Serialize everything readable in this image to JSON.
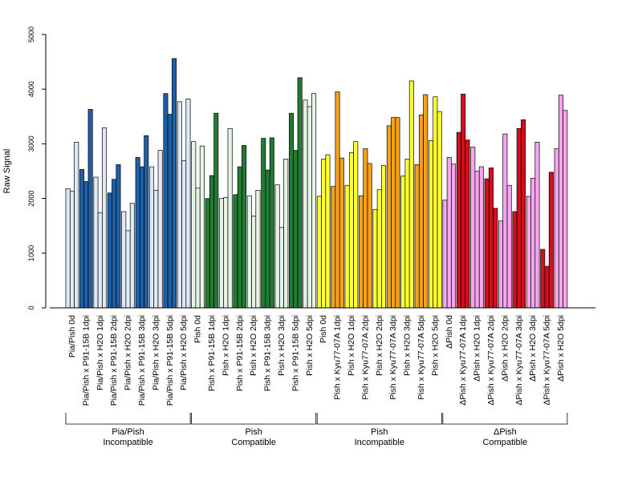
{
  "chart_data": {
    "type": "bar",
    "ylabel": "Raw Signal",
    "ylim": [
      0,
      5000
    ],
    "yticks": [
      0,
      1000,
      2000,
      3000,
      4000,
      5000
    ],
    "grid": false,
    "legend": "none",
    "groups": [
      {
        "label_line1": "Pia/Pish",
        "label_line2": "Incompatible",
        "categories": [
          {
            "label": "Pia/Pish 0d",
            "color": "#ddeaf6",
            "values": [
              2180,
              2130,
              3030
            ]
          },
          {
            "label": "Pia/Pish x P91-15B 1dpi",
            "color": "#1f5fa6",
            "values": [
              2530,
              2310,
              3630
            ]
          },
          {
            "label": "Pia/Pish x H2O 1dpi",
            "color": "#ddeaf6",
            "values": [
              2390,
              1740,
              3290
            ]
          },
          {
            "label": "Pia/Pish x P91-15B 2dpi",
            "color": "#1f5fa6",
            "values": [
              2100,
              2350,
              2620
            ]
          },
          {
            "label": "Pia/Pish x H2O 2dpi",
            "color": "#ddeaf6",
            "values": [
              1760,
              1410,
              1910
            ]
          },
          {
            "label": "Pia/Pish x P91-15B 3dpi",
            "color": "#1f5fa6",
            "values": [
              2750,
              2580,
              3150
            ]
          },
          {
            "label": "Pia/Pish x H2O 3dpi",
            "color": "#ddeaf6",
            "values": [
              2580,
              2150,
              2880
            ]
          },
          {
            "label": "Pia/Pish x P91-15B 5dpi",
            "color": "#1f5fa6",
            "values": [
              3920,
              3540,
              4560
            ]
          },
          {
            "label": "Pia/Pish x H2O 5dpi",
            "color": "#ddeaf6",
            "values": [
              3770,
              2690,
              3820
            ]
          }
        ]
      },
      {
        "label_line1": "Pish",
        "label_line2": "Compatible",
        "categories": [
          {
            "label": "Pish 0d",
            "color": "#e6f4e6",
            "values": [
              3040,
              2190,
              2960
            ]
          },
          {
            "label": "Pish x P91-15B 1dpi",
            "color": "#237a33",
            "values": [
              2000,
              2420,
              3560
            ]
          },
          {
            "label": "Pish x H2O 1dpi",
            "color": "#e6f4e6",
            "values": [
              2000,
              2020,
              3280
            ]
          },
          {
            "label": "Pish x P91-15B 2dpi",
            "color": "#237a33",
            "values": [
              2070,
              2580,
              2970
            ]
          },
          {
            "label": "Pish x H2O 2dpi",
            "color": "#e6f4e6",
            "values": [
              2050,
              1680,
              2150
            ]
          },
          {
            "label": "Pish x P91-15B 3dpi",
            "color": "#237a33",
            "values": [
              3100,
              2520,
              3110
            ]
          },
          {
            "label": "Pish x H2O 3dpi",
            "color": "#e6f4e6",
            "values": [
              2250,
              1470,
              2720
            ]
          },
          {
            "label": "Pish x P91-15B 5dpi",
            "color": "#237a33",
            "values": [
              3560,
              2880,
              4210
            ]
          },
          {
            "label": "Pish x H2O 5dpi",
            "color": "#e6f4e6",
            "values": [
              3800,
              3680,
              3920
            ]
          }
        ]
      },
      {
        "label_line1": "Pish",
        "label_line2": "Incompatible",
        "categories": [
          {
            "label": "Pish 0d",
            "color": "#ffff33",
            "values": [
              2040,
              2720,
              2800
            ]
          },
          {
            "label": "Pish x Kyu77-07A 1dpi",
            "color": "#f4a21a",
            "values": [
              2220,
              3950,
              2740
            ]
          },
          {
            "label": "Pish x H2O 1dpi",
            "color": "#ffff33",
            "values": [
              2240,
              2840,
              3040
            ]
          },
          {
            "label": "Pish x Kyu77-07A 2dpi",
            "color": "#f4a21a",
            "values": [
              2050,
              2910,
              2640
            ]
          },
          {
            "label": "Pish x H2O 2dpi",
            "color": "#ffff33",
            "values": [
              1800,
              2160,
              2600
            ]
          },
          {
            "label": "Pish x Kyu77-07A 3dpi",
            "color": "#f4a21a",
            "values": [
              3330,
              3480,
              3480
            ]
          },
          {
            "label": "Pish x H2O 3dpi",
            "color": "#ffff33",
            "values": [
              2410,
              2720,
              4150
            ]
          },
          {
            "label": "Pish x Kyu77-07A 5dpi",
            "color": "#f4a21a",
            "values": [
              2620,
              3530,
              3900
            ]
          },
          {
            "label": "Pish x H2O 5dpi",
            "color": "#ffff33",
            "values": [
              3060,
              3860,
              3590
            ]
          }
        ]
      },
      {
        "label_line1": "ΔPish",
        "label_line2": "Compatible",
        "categories": [
          {
            "label": "ΔPish 0d",
            "color": "#f5a6ee",
            "values": [
              1970,
              2750,
              2630
            ]
          },
          {
            "label": "ΔPish x Kyu77-07A 1dpi",
            "color": "#d0101c",
            "values": [
              3210,
              3910,
              3070
            ]
          },
          {
            "label": "ΔPish x H2O 1dpi",
            "color": "#f5a6ee",
            "values": [
              2940,
              2500,
              2580
            ]
          },
          {
            "label": "ΔPish x Kyu77-07A 2dpi",
            "color": "#d0101c",
            "values": [
              2360,
              2560,
              1820
            ]
          },
          {
            "label": "ΔPish x H2O 2dpi",
            "color": "#f5a6ee",
            "values": [
              1590,
              3180,
              2240
            ]
          },
          {
            "label": "ΔPish x Kyu77-07A 3dpi",
            "color": "#d0101c",
            "values": [
              1760,
              3280,
              3440
            ]
          },
          {
            "label": "ΔPish x H2O 3dpi",
            "color": "#f5a6ee",
            "values": [
              2040,
              2370,
              3030
            ]
          },
          {
            "label": "ΔPish x Kyu77-07A 5dpi",
            "color": "#d0101c",
            "values": [
              1070,
              760,
              2480
            ]
          },
          {
            "label": "ΔPish x H2O 5dpi",
            "color": "#f5a6ee",
            "values": [
              2910,
              3890,
              3610
            ]
          }
        ]
      }
    ]
  }
}
